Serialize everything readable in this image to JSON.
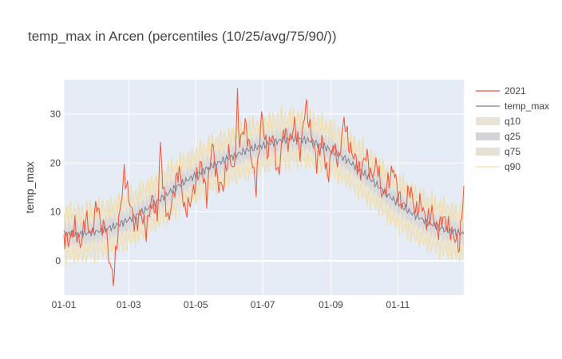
{
  "chart_data": {
    "type": "line",
    "title": "temp_max in Arcen (percentiles (10/25/avg/75/90/))",
    "xlabel": "",
    "ylabel": "temp_max",
    "x_range_days": [
      0,
      364
    ],
    "ylim": [
      -7,
      37
    ],
    "grid": true,
    "legend_position": "right",
    "x_ticks": [
      {
        "day": 0,
        "label": "01-01"
      },
      {
        "day": 59,
        "label": "01-03"
      },
      {
        "day": 120,
        "label": "01-05"
      },
      {
        "day": 181,
        "label": "01-07"
      },
      {
        "day": 243,
        "label": "01-09"
      },
      {
        "day": 304,
        "label": "01-11"
      }
    ],
    "y_ticks": [
      0,
      10,
      20,
      30
    ],
    "avg_knots": {
      "x": [
        0,
        15,
        30,
        45,
        60,
        75,
        90,
        105,
        120,
        135,
        150,
        165,
        180,
        195,
        210,
        225,
        240,
        255,
        270,
        285,
        300,
        315,
        330,
        345,
        364
      ],
      "y": [
        5.5,
        5.5,
        6.0,
        7.0,
        8.5,
        10.5,
        13.0,
        15.5,
        17.5,
        19.5,
        21.0,
        22.5,
        23.5,
        24.5,
        25.0,
        24.5,
        23.0,
        21.0,
        18.5,
        15.5,
        12.5,
        10.0,
        8.0,
        6.5,
        5.5
      ]
    },
    "band_widths": {
      "q10": 4.5,
      "q25": 2.0,
      "q75": 2.0,
      "q90": 4.5
    },
    "series_2021_knots": {
      "x": [
        0,
        5,
        10,
        15,
        20,
        25,
        30,
        35,
        38,
        40,
        45,
        48,
        50,
        55,
        60,
        65,
        70,
        75,
        80,
        85,
        88,
        90,
        95,
        100,
        105,
        110,
        115,
        120,
        125,
        130,
        135,
        140,
        145,
        150,
        155,
        158,
        160,
        165,
        170,
        175,
        180,
        185,
        190,
        195,
        200,
        205,
        210,
        215,
        220,
        225,
        230,
        235,
        240,
        245,
        250,
        255,
        260,
        265,
        270,
        275,
        280,
        285,
        290,
        295,
        300,
        305,
        310,
        315,
        320,
        325,
        330,
        335,
        340,
        345,
        350,
        355,
        360,
        364
      ],
      "y": [
        5,
        4,
        7,
        3,
        9,
        5,
        12,
        6,
        8,
        2,
        -4,
        3,
        8,
        18,
        12,
        7,
        10,
        6,
        13,
        9,
        24,
        16,
        8,
        14,
        19,
        10,
        12,
        16,
        20,
        13,
        24,
        16,
        15,
        22,
        18,
        33,
        24,
        28,
        22,
        15,
        30,
        22,
        26,
        17,
        27,
        24,
        28,
        22,
        32,
        26,
        20,
        25,
        17,
        24,
        20,
        29,
        23,
        21,
        18,
        22,
        17,
        20,
        13,
        16,
        19,
        13,
        11,
        15,
        10,
        12,
        8,
        10,
        6,
        9,
        7,
        5,
        3,
        15
      ]
    },
    "series": [
      {
        "name": "2021",
        "color": "#ef553b",
        "kind": "line"
      },
      {
        "name": "temp_max",
        "color": "#7f7f8c",
        "kind": "line"
      },
      {
        "name": "q10",
        "color": "#e9e4d6",
        "kind": "band"
      },
      {
        "name": "q25",
        "color": "#d4d4d8",
        "kind": "band"
      },
      {
        "name": "q75",
        "color": "#e6e1d3",
        "kind": "band"
      },
      {
        "name": "q90",
        "color": "#f1dfaa",
        "kind": "line"
      }
    ],
    "colors": {
      "plot_bg": "#e5ecf6",
      "grid": "#ffffff",
      "outer_band": "#ece5cf",
      "inner_band": "#d7d7dd",
      "q90_line": "#f0dca6"
    }
  }
}
